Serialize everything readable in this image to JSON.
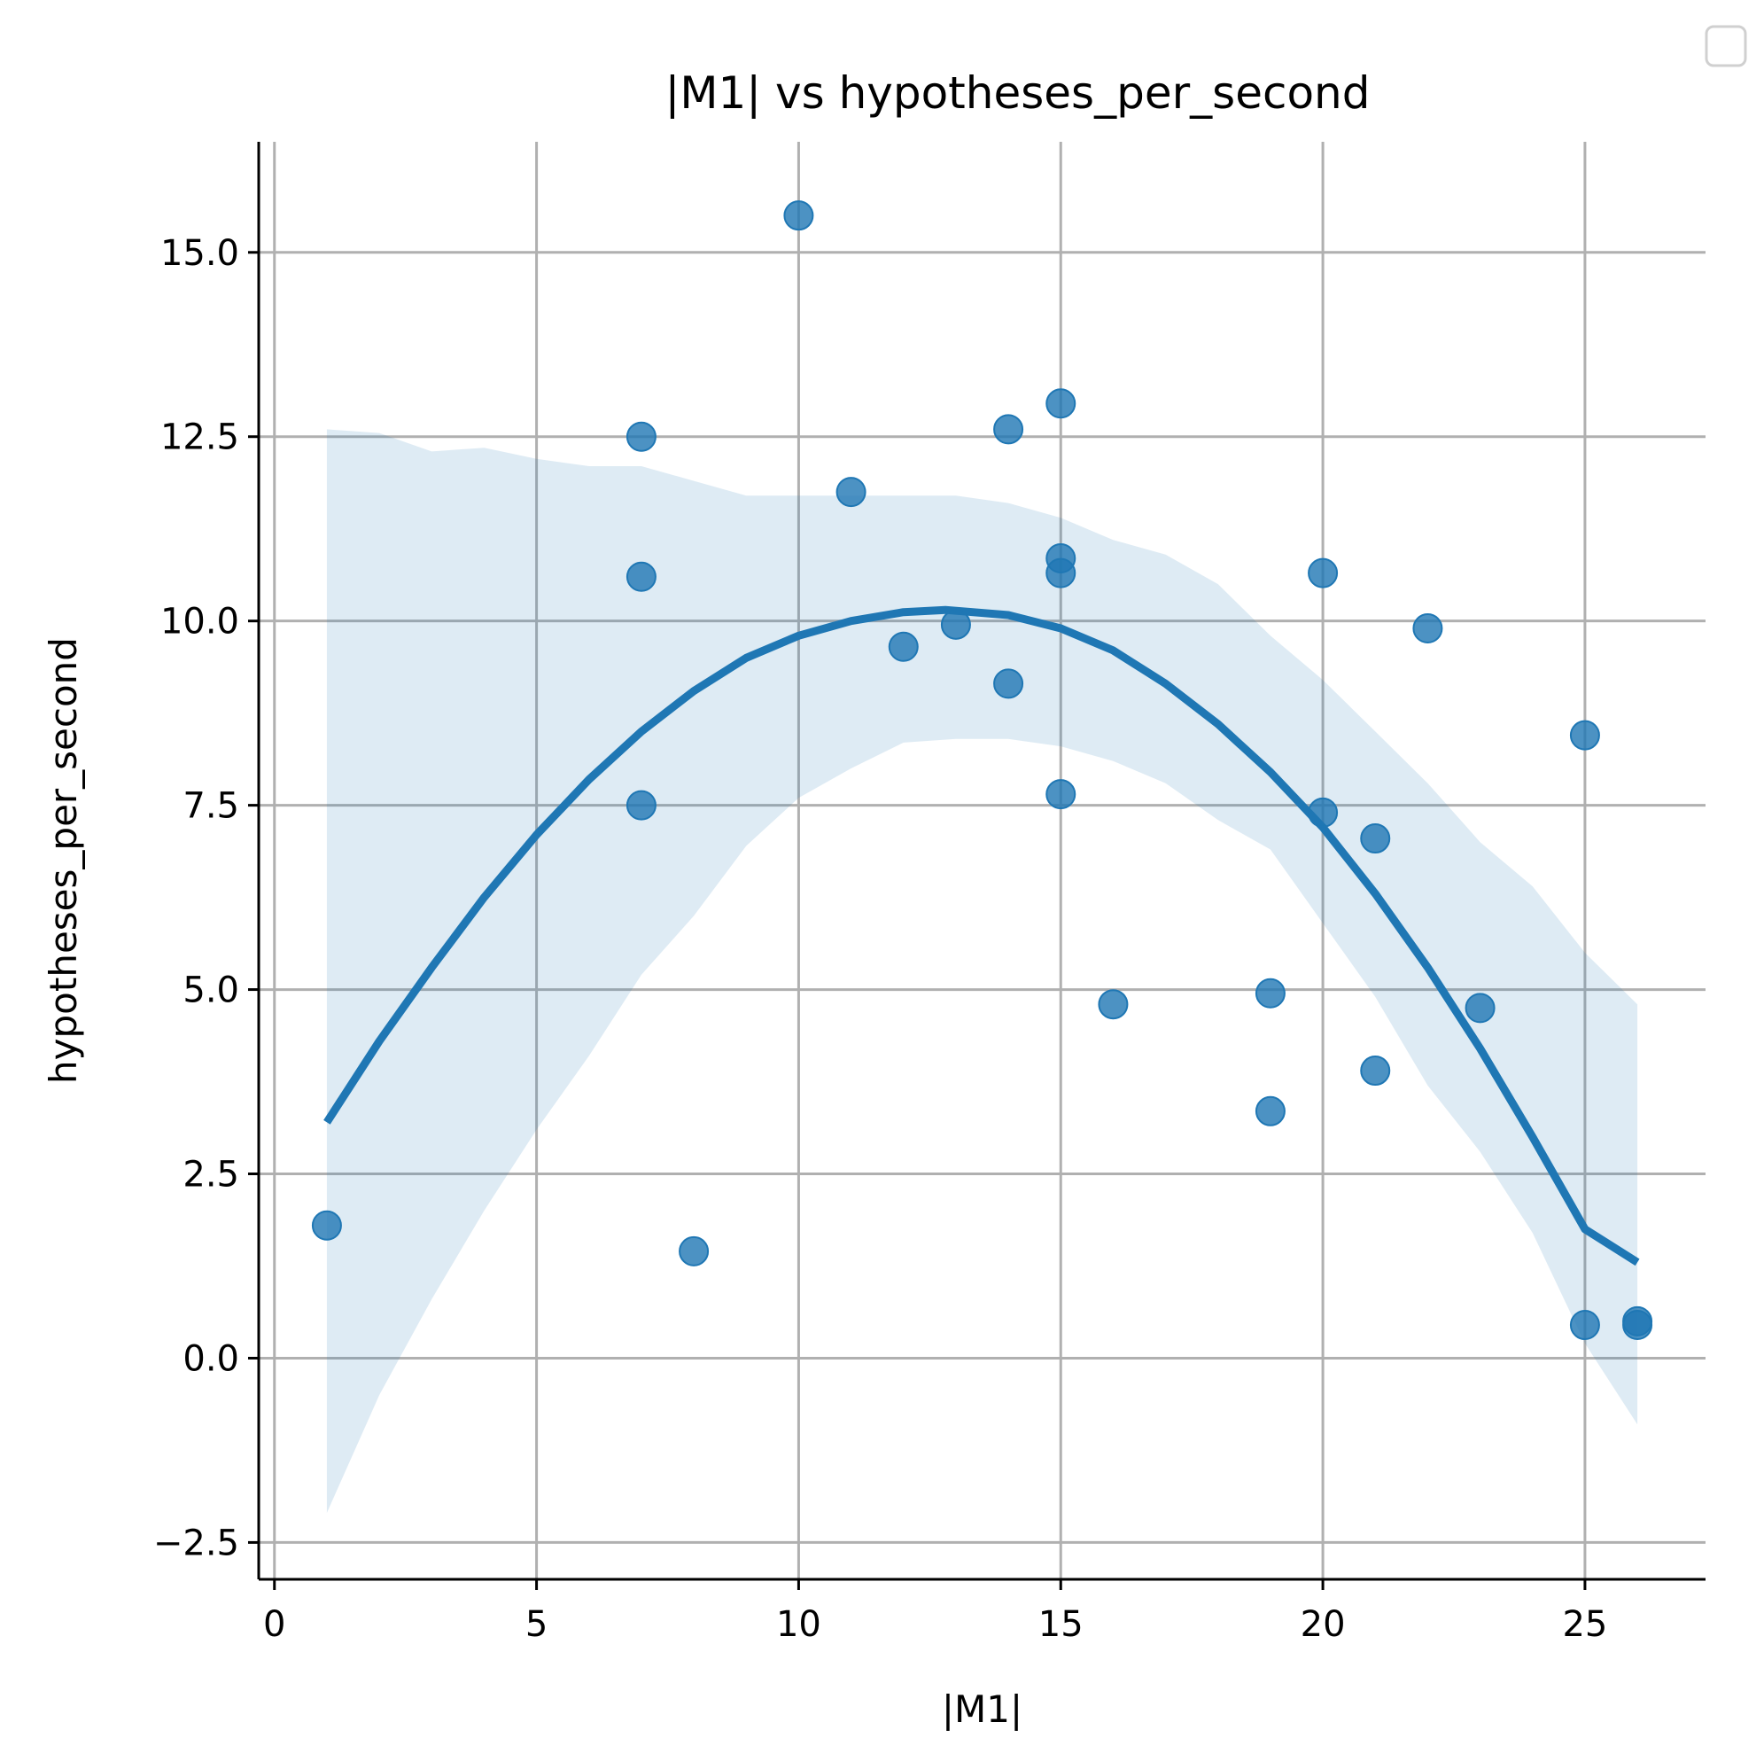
{
  "chart_data": {
    "type": "scatter",
    "title": "|M1| vs hypotheses_per_second",
    "xlabel": "|M1|",
    "ylabel": "hypotheses_per_second",
    "xlim": [
      -0.3,
      27.3
    ],
    "ylim": [
      -3.0,
      16.5
    ],
    "xticks": [
      0,
      5,
      10,
      15,
      20,
      25
    ],
    "xtick_labels": [
      "0",
      "5",
      "10",
      "15",
      "20",
      "25"
    ],
    "yticks": [
      -2.5,
      0.0,
      2.5,
      5.0,
      7.5,
      10.0,
      12.5,
      15.0
    ],
    "ytick_labels": [
      "−2.5",
      "0.0",
      "2.5",
      "5.0",
      "7.5",
      "10.0",
      "12.5",
      "15.0"
    ],
    "grid": true,
    "legend": "top-right, empty",
    "colors": {
      "points": "#1f77b4",
      "fit_line": "#1f77b4",
      "ci_band": "#1f77b4",
      "grid": "#b0b0b0"
    },
    "points": [
      {
        "x": 1,
        "y": 1.8
      },
      {
        "x": 7,
        "y": 12.5
      },
      {
        "x": 7,
        "y": 10.6
      },
      {
        "x": 7,
        "y": 7.5
      },
      {
        "x": 8,
        "y": 1.45
      },
      {
        "x": 10,
        "y": 15.5
      },
      {
        "x": 11,
        "y": 11.75
      },
      {
        "x": 12,
        "y": 9.65
      },
      {
        "x": 13,
        "y": 9.95
      },
      {
        "x": 14,
        "y": 12.6
      },
      {
        "x": 14,
        "y": 9.15
      },
      {
        "x": 15,
        "y": 12.95
      },
      {
        "x": 15,
        "y": 10.85
      },
      {
        "x": 15,
        "y": 10.65
      },
      {
        "x": 15,
        "y": 7.65
      },
      {
        "x": 16,
        "y": 4.8
      },
      {
        "x": 19,
        "y": 4.95
      },
      {
        "x": 19,
        "y": 3.35
      },
      {
        "x": 20,
        "y": 10.65
      },
      {
        "x": 20,
        "y": 7.4
      },
      {
        "x": 21,
        "y": 7.05
      },
      {
        "x": 21,
        "y": 3.9
      },
      {
        "x": 22,
        "y": 9.9
      },
      {
        "x": 23,
        "y": 4.75
      },
      {
        "x": 25,
        "y": 8.45
      },
      {
        "x": 25,
        "y": 0.45
      },
      {
        "x": 26,
        "y": 0.5
      },
      {
        "x": 26,
        "y": 0.45
      }
    ],
    "fit_curve": {
      "x": [
        1,
        2,
        3,
        4,
        5,
        6,
        7,
        8,
        9,
        10,
        11,
        12,
        12.8,
        14,
        15,
        16,
        17,
        18,
        19,
        20,
        21,
        22,
        23,
        24,
        25,
        26
      ],
      "y": [
        3.2,
        4.3,
        5.3,
        6.25,
        7.1,
        7.85,
        8.5,
        9.05,
        9.5,
        9.8,
        10.0,
        10.12,
        10.15,
        10.08,
        9.9,
        9.6,
        9.15,
        8.6,
        7.95,
        7.2,
        6.3,
        5.3,
        4.2,
        3.0,
        1.75,
        1.3
      ]
    },
    "ci_band": {
      "x": [
        1,
        2,
        3,
        4,
        5,
        6,
        7,
        8,
        9,
        10,
        11,
        12,
        13,
        14,
        15,
        16,
        17,
        18,
        19,
        20,
        21,
        22,
        23,
        24,
        25,
        26
      ],
      "upper": [
        12.6,
        12.55,
        12.3,
        12.35,
        12.2,
        12.1,
        12.1,
        11.9,
        11.7,
        11.7,
        11.7,
        11.7,
        11.7,
        11.6,
        11.4,
        11.1,
        10.9,
        10.5,
        9.8,
        9.2,
        8.5,
        7.8,
        7.0,
        6.4,
        5.5,
        4.8
      ],
      "lower": [
        -2.1,
        -0.5,
        0.8,
        2.0,
        3.1,
        4.1,
        5.2,
        6.0,
        6.95,
        7.6,
        8.0,
        8.35,
        8.4,
        8.4,
        8.3,
        8.1,
        7.8,
        7.3,
        6.9,
        5.9,
        4.9,
        3.7,
        2.8,
        1.7,
        0.2,
        -0.9
      ]
    }
  }
}
